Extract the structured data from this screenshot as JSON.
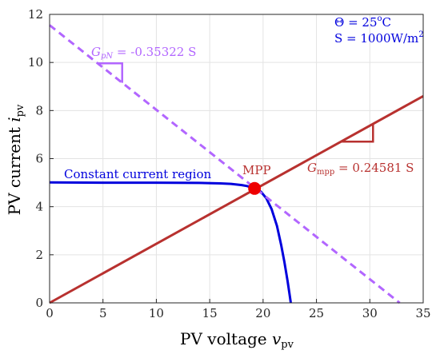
{
  "chart_data": {
    "type": "line",
    "title": "",
    "xlabel": {
      "main": "PV voltage ",
      "var": "v",
      "sub": "pv"
    },
    "ylabel": {
      "main": "PV current ",
      "var": "i",
      "sub": "pv"
    },
    "xlim": [
      0,
      35
    ],
    "ylim": [
      0,
      12
    ],
    "xticks": [
      0,
      5,
      10,
      15,
      20,
      25,
      30,
      35
    ],
    "yticks": [
      0,
      2,
      4,
      6,
      8,
      10,
      12
    ],
    "grid": true,
    "legend": "none",
    "series": [
      {
        "color": "#0000dd",
        "x": [
          0,
          5,
          10,
          14,
          16,
          17,
          18,
          18.5,
          19.2,
          19.8,
          20.3,
          20.8,
          21.3,
          21.7,
          22.0,
          22.3,
          22.5,
          22.6
        ],
        "y": [
          5.01,
          5.0,
          5.0,
          4.99,
          4.97,
          4.95,
          4.9,
          4.86,
          4.76,
          4.62,
          4.35,
          3.9,
          3.2,
          2.4,
          1.7,
          0.9,
          0.3,
          0
        ]
      },
      {
        "color": "#b8312f",
        "x": [
          0,
          35
        ],
        "y": [
          0,
          8.6
        ]
      },
      {
        "color": "#b266ff",
        "dashed": true,
        "x": [
          0,
          32.8
        ],
        "y": [
          11.55,
          0
        ]
      }
    ],
    "mpp_point": {
      "x": 19.2,
      "y": 4.76,
      "color": "#ee0000"
    },
    "annotations": {
      "constant_current": {
        "text": "Constant current region",
        "color": "#0000dd"
      },
      "mpp_label": {
        "text": "MPP",
        "color": "#b8312f"
      },
      "g_mpp": {
        "var": "G",
        "sub": "mpp",
        "value": " = 0.24581 S",
        "color": "#b8312f"
      },
      "g_pn": {
        "var": "G",
        "sub": "pN",
        "value": " = -0.35322 S",
        "color": "#b266ff"
      },
      "conditions": {
        "color": "#0000dd",
        "theta_sym": "Θ",
        "theta_eq": " = 25",
        "theta_sup": "o",
        "theta_unit": "C",
        "irr_main": "S = 1000W/m",
        "irr_sup": "2"
      }
    }
  }
}
